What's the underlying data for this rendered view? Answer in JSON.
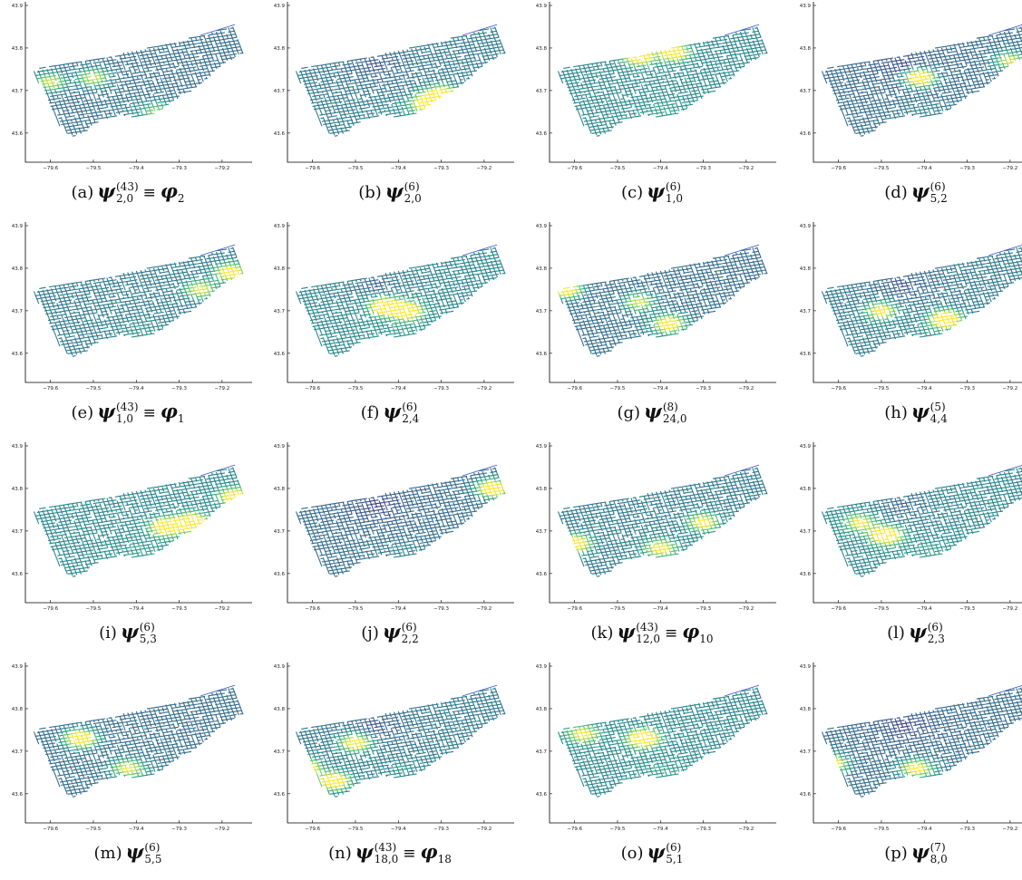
{
  "chart_data": {
    "type": "scatter",
    "x_ticks": [
      "−79.6",
      "−79.5",
      "−79.4",
      "−79.3",
      "−79.2"
    ],
    "y_ticks": [
      "43.9",
      "43.8",
      "43.7",
      "43.6"
    ],
    "xlim": [
      -79.65,
      -79.13
    ],
    "ylim": [
      43.54,
      43.9
    ],
    "colormap": [
      "#440154",
      "#3b528b",
      "#21918c",
      "#5ec962",
      "#fde725"
    ],
    "panels": [
      {
        "label": "(a)",
        "sub": "2,0",
        "sup": "(43)",
        "phi": "2",
        "hot": [
          [
            -79.5,
            43.73,
            0.6
          ],
          [
            -79.6,
            43.72,
            0.6
          ],
          [
            -79.35,
            43.65,
            0.4
          ]
        ]
      },
      {
        "label": "(b)",
        "sub": "2,0",
        "sup": "(6)",
        "phi": "",
        "hot": [
          [
            -79.33,
            43.67,
            1.0
          ],
          [
            -79.3,
            43.69,
            0.9
          ]
        ]
      },
      {
        "label": "(c)",
        "sub": "1,0",
        "sup": "(6)",
        "phi": "",
        "hot": [
          [
            -79.45,
            43.78,
            0.8
          ],
          [
            -79.37,
            43.79,
            0.8
          ]
        ]
      },
      {
        "label": "(d)",
        "sub": "5,2",
        "sup": "(6)",
        "phi": "",
        "hot": [
          [
            -79.41,
            43.73,
            1.0
          ],
          [
            -79.2,
            43.77,
            0.6
          ]
        ]
      },
      {
        "label": "(e)",
        "sub": "1,0",
        "sup": "(43)",
        "phi": "1",
        "hot": [
          [
            -79.18,
            43.79,
            0.8
          ],
          [
            -79.25,
            43.75,
            0.6
          ]
        ]
      },
      {
        "label": "(f)",
        "sub": "2,4",
        "sup": "(6)",
        "phi": "",
        "hot": [
          [
            -79.43,
            43.71,
            1.0
          ],
          [
            -79.38,
            43.7,
            0.9
          ]
        ]
      },
      {
        "label": "(g)",
        "sub": "24,0",
        "sup": "(8)",
        "phi": "",
        "hot": [
          [
            -79.38,
            43.67,
            0.8
          ],
          [
            -79.62,
            43.75,
            0.9
          ],
          [
            -79.45,
            43.72,
            0.6
          ]
        ]
      },
      {
        "label": "(h)",
        "sub": "4,4",
        "sup": "(5)",
        "phi": "",
        "hot": [
          [
            -79.35,
            43.68,
            1.0
          ],
          [
            -79.5,
            43.7,
            0.7
          ]
        ]
      },
      {
        "label": "(i)",
        "sub": "5,3",
        "sup": "(6)",
        "phi": "",
        "hot": [
          [
            -79.27,
            43.72,
            1.0
          ],
          [
            -79.33,
            43.71,
            0.9
          ],
          [
            -79.17,
            43.78,
            0.8
          ]
        ]
      },
      {
        "label": "(j)",
        "sub": "2,2",
        "sup": "(6)",
        "phi": "",
        "hot": [
          [
            -79.18,
            43.8,
            1.0
          ]
        ]
      },
      {
        "label": "(k)",
        "sub": "12,0",
        "sup": "(43)",
        "phi": "10",
        "hot": [
          [
            -79.6,
            43.67,
            0.9
          ],
          [
            -79.3,
            43.72,
            0.7
          ],
          [
            -79.4,
            43.66,
            0.6
          ]
        ]
      },
      {
        "label": "(l)",
        "sub": "2,3",
        "sup": "(6)",
        "phi": "",
        "hot": [
          [
            -79.49,
            43.69,
            1.0
          ],
          [
            -79.55,
            43.72,
            0.6
          ]
        ]
      },
      {
        "label": "(m)",
        "sub": "5,5",
        "sup": "(6)",
        "phi": "",
        "hot": [
          [
            -79.53,
            43.73,
            1.0
          ],
          [
            -79.42,
            43.66,
            0.6
          ]
        ]
      },
      {
        "label": "(n)",
        "sub": "18,0",
        "sup": "(43)",
        "phi": "18",
        "hot": [
          [
            -79.62,
            43.66,
            1.0
          ],
          [
            -79.55,
            43.63,
            0.9
          ],
          [
            -79.5,
            43.72,
            0.8
          ]
        ]
      },
      {
        "label": "(o)",
        "sub": "5,1",
        "sup": "(6)",
        "phi": "",
        "hot": [
          [
            -79.44,
            43.73,
            1.0
          ],
          [
            -79.58,
            43.74,
            0.6
          ]
        ]
      },
      {
        "label": "(p)",
        "sub": "8,0",
        "sup": "(7)",
        "phi": "",
        "hot": [
          [
            -79.62,
            43.67,
            1.0
          ],
          [
            -79.42,
            43.66,
            0.7
          ]
        ]
      }
    ]
  }
}
